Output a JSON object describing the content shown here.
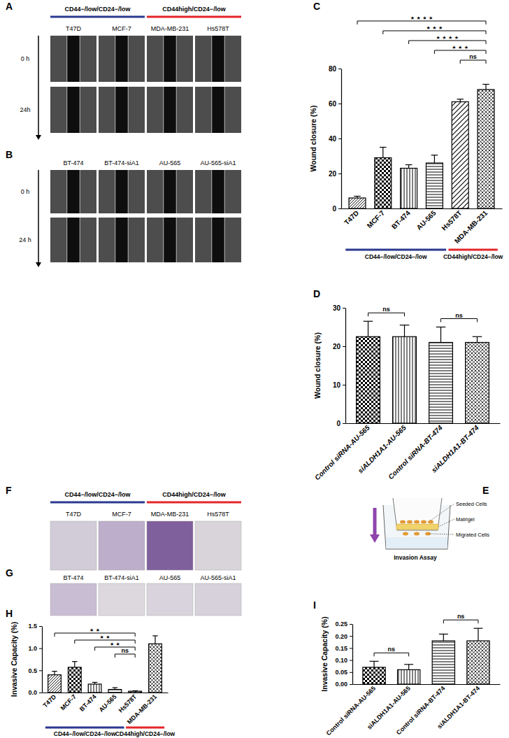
{
  "image_panels": [
    {
      "label": "A",
      "groups": [
        {
          "label": "CD44−/low/CD24−/low",
          "color": "#2b3990",
          "members": [
            "T47D",
            "MCF-7"
          ]
        },
        {
          "label": "CD44high/CD24−/low",
          "color": "#e4262a",
          "members": [
            "MDA-MB-231",
            "Hs578T"
          ]
        }
      ],
      "columns": [
        "T47D",
        "MCF-7",
        "MDA-MB-231",
        "Hs578T"
      ],
      "rows": [
        "0 h",
        "24h"
      ]
    },
    {
      "label": "B",
      "columns": [
        "BT-474",
        "BT-474-siA1",
        "AU-565",
        "AU-565-siA1"
      ],
      "rows": [
        "0 h",
        "24 h"
      ]
    },
    {
      "label": "F",
      "groups": [
        {
          "label": "CD44−/low/CD24−/low",
          "color": "#2b3990",
          "members": [
            "T47D",
            "MCF-7"
          ]
        },
        {
          "label": "CD44high/CD24−/low",
          "color": "#e4262a",
          "members": [
            "MDA-MB-231",
            "Hs578T"
          ]
        }
      ],
      "columns": [
        "T47D",
        "MCF-7",
        "MDA-MB-231",
        "Hs578T"
      ]
    },
    {
      "label": "G",
      "columns": [
        "BT-474",
        "BT-474-siA1",
        "AU-565",
        "AU-565-siA1"
      ]
    }
  ],
  "diagram": {
    "label": "E",
    "title": "Invasion Assay",
    "parts": [
      "Seeded Cells",
      "Matrigel",
      "Migrated Cells"
    ]
  },
  "chart_data": [
    {
      "label": "C",
      "type": "bar",
      "y_label": "Wound closure (%)",
      "categories": [
        "T47D",
        "MCF-7",
        "BT-474",
        "AU-565",
        "Hs578T",
        "MDA-MB-231"
      ],
      "values": [
        6,
        29,
        23,
        26,
        61,
        68
      ],
      "errors": [
        1,
        6,
        2,
        4.5,
        1.5,
        3
      ],
      "ylim": [
        0,
        80
      ],
      "yticks": [
        0,
        20,
        40,
        60,
        80
      ],
      "annotations": [
        {
          "between": [
            "T47D",
            "MDA-MB-231"
          ],
          "text": "★ ★ ★ ★"
        },
        {
          "between": [
            "MCF-7",
            "MDA-MB-231"
          ],
          "text": "★ ★ ★"
        },
        {
          "between": [
            "BT-474",
            "MDA-MB-231"
          ],
          "text": "★ ★ ★ ★"
        },
        {
          "between": [
            "AU-565",
            "MDA-MB-231"
          ],
          "text": "★ ★ ★"
        },
        {
          "between": [
            "Hs578T",
            "MDA-MB-231"
          ],
          "text": "ns"
        }
      ],
      "groups": [
        {
          "label": "CD44−/low/CD24−/low",
          "color": "#2b3990",
          "members": [
            "T47D",
            "MCF-7",
            "BT-474",
            "AU-565"
          ]
        },
        {
          "label": "CD44high/CD24−/low",
          "color": "#e4262a",
          "members": [
            "Hs578T",
            "MDA-MB-231"
          ]
        }
      ]
    },
    {
      "label": "D",
      "type": "bar",
      "y_label": "Wound closure (%)",
      "categories": [
        "Control siRNA-AU-565",
        "siALDH1A1-AU-565",
        "Control siRNA-BT-474",
        "siALDH1A1-BT-474"
      ],
      "values": [
        22.5,
        22.5,
        21,
        21
      ],
      "errors": [
        4,
        3,
        4,
        1.5
      ],
      "ylim": [
        0,
        30
      ],
      "yticks": [
        0,
        10,
        20,
        30
      ],
      "annotations": [
        {
          "between": [
            "Control siRNA-AU-565",
            "siALDH1A1-AU-565"
          ],
          "text": "ns"
        },
        {
          "between": [
            "Control siRNA-BT-474",
            "siALDH1A1-BT-474"
          ],
          "text": "ns"
        }
      ]
    },
    {
      "label": "H",
      "type": "bar",
      "y_label": "Invasive Capacity (%)",
      "categories": [
        "T47D",
        "MCF-7",
        "BT-474",
        "AU-565",
        "Hs578T",
        "MDA-MB-231"
      ],
      "values": [
        0.4,
        0.57,
        0.19,
        0.07,
        0.03,
        1.1
      ],
      "errors": [
        0.08,
        0.13,
        0.04,
        0.04,
        0.01,
        0.18
      ],
      "ylim": [
        0,
        1.5
      ],
      "yticks": [
        {
          "value": 0,
          "label": "0.0"
        },
        0.5,
        {
          "value": 1,
          "label": "1.0"
        },
        1.5
      ],
      "annotations": [
        {
          "between": [
            "T47D",
            "Hs578T"
          ],
          "text": "★ ★"
        },
        {
          "between": [
            "MCF-7",
            "Hs578T"
          ],
          "text": "★ ★"
        },
        {
          "between": [
            "BT-474",
            "Hs578T"
          ],
          "text": "★ ★"
        },
        {
          "between": [
            "AU-565",
            "Hs578T"
          ],
          "text": "ns"
        }
      ],
      "groups": [
        {
          "label": "CD44−/low/CD24−/low",
          "color": "#2b3990",
          "members": [
            "T47D",
            "MCF-7",
            "BT-474",
            "AU-565"
          ]
        },
        {
          "label": "CD44high/CD24−/low",
          "color": "#e4262a",
          "members": [
            "Hs578T",
            "MDA-MB-231"
          ]
        }
      ]
    },
    {
      "label": "I",
      "type": "bar",
      "y_label": "Invasive Capacity (%)",
      "categories": [
        "Control siRNA-AU-565",
        "siALDH1A1-AU-565",
        "Control siRNA-BT-474",
        "siALDH1A1-BT-474"
      ],
      "values": [
        0.07,
        0.06,
        0.18,
        0.18
      ],
      "errors": [
        0.025,
        0.022,
        0.028,
        0.052
      ],
      "ylim": [
        0,
        0.25
      ],
      "yticks": [
        {
          "value": 0,
          "label": "0.00"
        },
        0.05,
        {
          "value": 0.1,
          "label": "0.10"
        },
        0.15,
        {
          "value": 0.2,
          "label": "0.20"
        },
        0.25
      ],
      "annotations": [
        {
          "between": [
            "Control siRNA-AU-565",
            "siALDH1A1-AU-565"
          ],
          "text": "ns"
        },
        {
          "between": [
            "Control siRNA-BT-474",
            "siALDH1A1-BT-474"
          ],
          "text": "ns"
        }
      ]
    }
  ]
}
